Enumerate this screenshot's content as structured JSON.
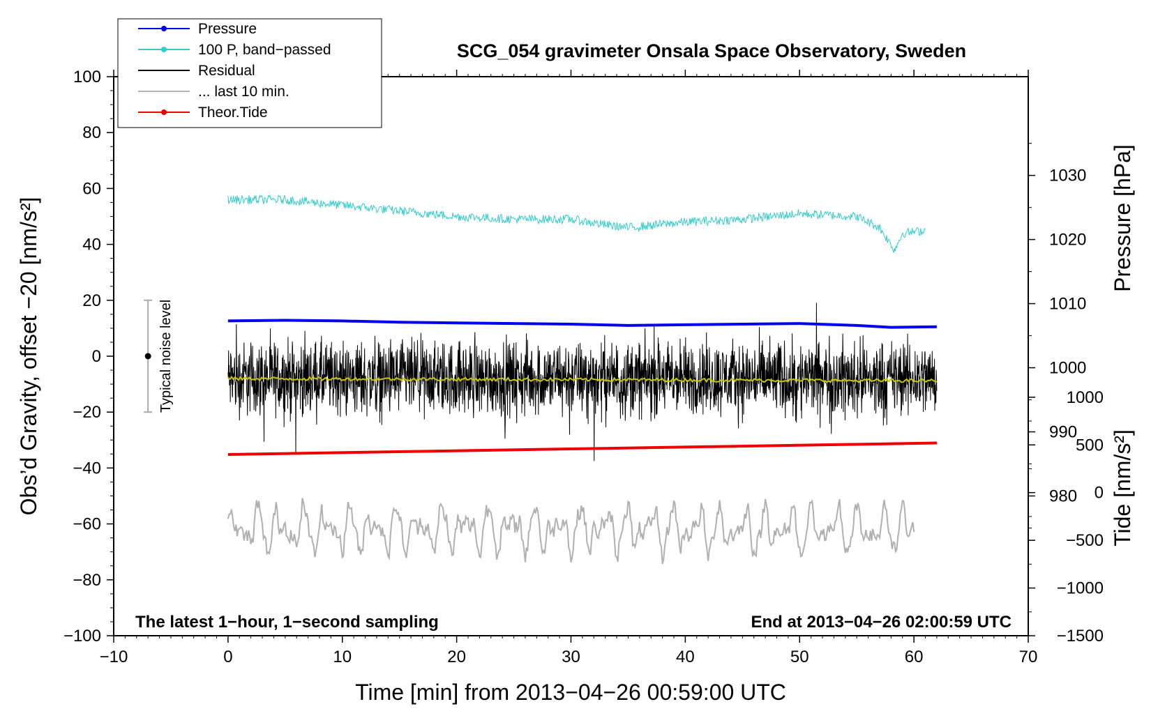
{
  "chart_data": {
    "type": "line",
    "title": "SCG_054 gravimeter Onsala Space Observatory, Sweden",
    "xlabel": "Time [min] from 2013−04−26 00:59:00 UTC",
    "ylabel_left": "Obs’d Gravity, offset −20 [nm/s²]",
    "ylabel_right_pressure": "Pressure [hPa]",
    "ylabel_right_tide": "Tide [nm/s²]",
    "xlim": [
      -10,
      70
    ],
    "ylim": [
      -100,
      100
    ],
    "x_ticks": [
      -10,
      0,
      10,
      20,
      30,
      40,
      50,
      60,
      70
    ],
    "x_tick_labels": [
      "−10",
      "0",
      "10",
      "20",
      "30",
      "40",
      "50",
      "60",
      "70"
    ],
    "y_ticks": [
      -100,
      -80,
      -60,
      -40,
      -20,
      0,
      20,
      40,
      60,
      80,
      100
    ],
    "y_tick_labels": [
      "−100",
      "−80",
      "−60",
      "−40",
      "−20",
      "0",
      "20",
      "40",
      "60",
      "80",
      "100"
    ],
    "pressure_axis": {
      "ticks": [
        980,
        990,
        1000,
        1010,
        1020,
        1030
      ],
      "tick_labels": [
        "980",
        "990",
        "1000",
        "1010",
        "1020",
        "1030"
      ],
      "range": [
        958.2,
        1045.4
      ]
    },
    "tide_axis": {
      "ticks": [
        -1500,
        -1000,
        -500,
        0,
        500,
        1000
      ],
      "tick_labels": [
        "−1500",
        "−1000",
        "−500",
        "0",
        "500",
        "1000"
      ],
      "range": [
        -1500,
        4360
      ]
    },
    "legend": [
      {
        "label": "Pressure",
        "color": "#0000ee",
        "marker": true
      },
      {
        "label": "100 P, band−passed",
        "color": "#33cccc",
        "marker": true
      },
      {
        "label": "Residual",
        "color": "#000000",
        "marker": false
      },
      {
        "label": "... last 10 min.",
        "color": "#b0b0b0",
        "marker": false
      },
      {
        "label": "Theor.Tide",
        "color": "#ee0000",
        "marker": true
      }
    ],
    "series": [
      {
        "name": "Pressure",
        "axis": "pressure",
        "color": "#0000ee",
        "x": [
          0,
          5,
          10,
          15,
          20,
          25,
          30,
          35,
          40,
          45,
          50,
          55,
          58,
          62
        ],
        "values": [
          1007.3,
          1007.4,
          1007.3,
          1007.1,
          1007.0,
          1006.9,
          1006.8,
          1006.6,
          1006.7,
          1006.8,
          1006.9,
          1006.6,
          1006.3,
          1006.4
        ]
      },
      {
        "name": "100 P, band−passed",
        "axis": "left",
        "color": "#33cccc",
        "x": [
          0,
          5,
          10,
          15,
          20,
          25,
          30,
          33,
          35,
          40,
          45,
          50,
          55,
          57,
          58.3,
          59,
          61
        ],
        "values": [
          56,
          56,
          54,
          52,
          50,
          49,
          49,
          47,
          46,
          48,
          49,
          51,
          50,
          46,
          38,
          44,
          45
        ]
      },
      {
        "name": "Residual",
        "axis": "left",
        "color": "#000000",
        "x": [
          0,
          62
        ],
        "values": [
          -8,
          -8
        ],
        "noise_amplitude": 13
      },
      {
        "name": "Residual smoothed",
        "axis": "left",
        "color": "#c8c800",
        "x": [
          0,
          62
        ],
        "values": [
          -8,
          -8.8
        ]
      },
      {
        "name": "... last 10 min.",
        "axis": "left",
        "color": "#b0b0b0",
        "x": [
          0,
          60
        ],
        "values": [
          -62,
          -62
        ],
        "oscillation_amplitude": 9
      },
      {
        "name": "Theor.Tide",
        "axis": "tide",
        "color": "#ee0000",
        "x": [
          0,
          62
        ],
        "values": [
          400,
          520
        ]
      }
    ],
    "noise_bar": {
      "label": "Typical noise level",
      "x": -7,
      "y": 0,
      "low": -20,
      "high": 20
    },
    "annotations": {
      "bottom_left": "The latest 1−hour, 1−second sampling",
      "bottom_right": "End at 2013−04−26 02:00:59 UTC"
    }
  }
}
